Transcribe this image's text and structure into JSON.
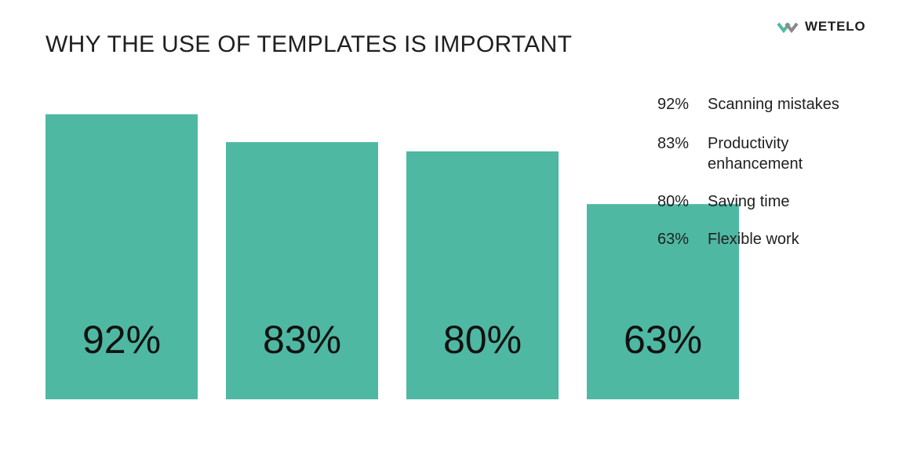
{
  "chart_data": {
    "type": "bar",
    "title": "WHY THE USE OF TEMPLATES IS IMPORTANT",
    "categories": [
      "Scanning mistakes",
      "Productivity enhancement",
      "Saving time",
      "Flexible work"
    ],
    "values": [
      92,
      83,
      80,
      63
    ],
    "value_labels": [
      "92%",
      "83%",
      "80%",
      "63%"
    ],
    "xlabel": "",
    "ylabel": "",
    "bar_color": "#4fb8a2",
    "grid": false,
    "legend_position": "right"
  },
  "brand": {
    "name": "WETELO",
    "logo_icon": "wetelo-chevron-logo-icon",
    "colors": [
      "#4fb8a2",
      "#8a8a8a"
    ]
  },
  "legend": {
    "items": [
      {
        "value": "92%",
        "label": "Scanning mistakes"
      },
      {
        "value": "83%",
        "label": "Productivity enhancement"
      },
      {
        "value": "80%",
        "label": "Saving time"
      },
      {
        "value": "63%",
        "label": "Flexible work"
      }
    ]
  }
}
